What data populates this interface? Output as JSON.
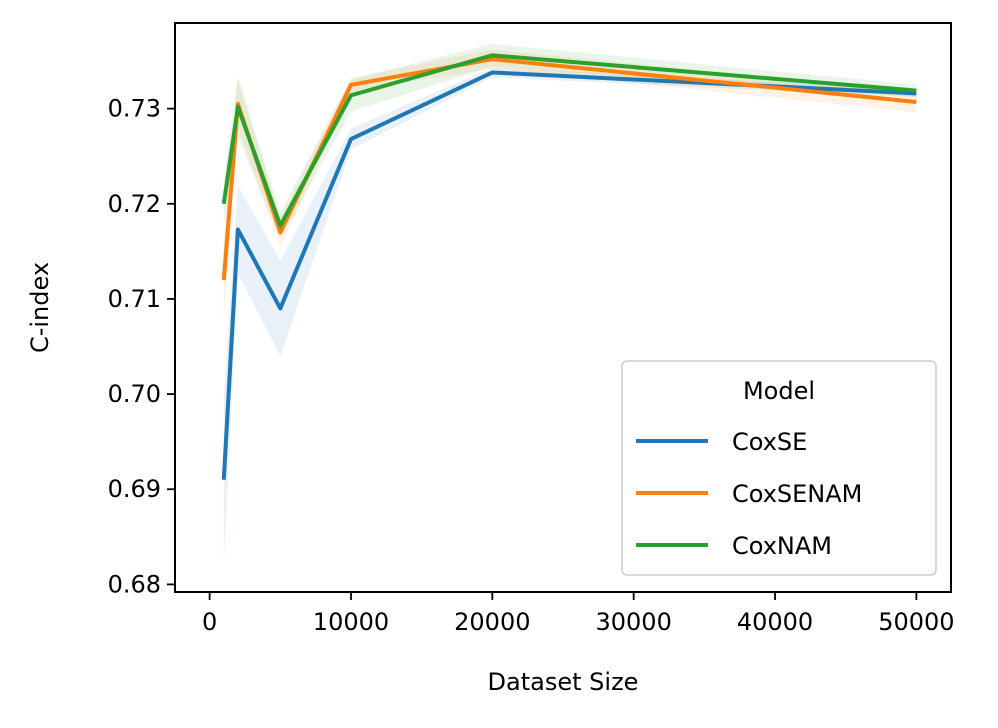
{
  "chart_data": {
    "type": "line",
    "title": "",
    "xlabel": "Dataset Size",
    "ylabel": "C-index",
    "xlim": [
      -2450,
      52450
    ],
    "ylim": [
      0.6792,
      0.739
    ],
    "xticks": [
      0,
      10000,
      20000,
      30000,
      40000,
      50000
    ],
    "xtick_labels": [
      "0",
      "10000",
      "20000",
      "30000",
      "40000",
      "50000"
    ],
    "yticks": [
      0.68,
      0.69,
      0.7,
      0.71,
      0.72,
      0.73
    ],
    "ytick_labels": [
      "0.68",
      "0.69",
      "0.70",
      "0.71",
      "0.72",
      "0.73"
    ],
    "grid": false,
    "legend": {
      "title": "Model",
      "placement": "lower-right"
    },
    "x": [
      1000,
      2000,
      5000,
      10000,
      20000,
      50000
    ],
    "series": [
      {
        "name": "CoxSE",
        "color": "#1f77b4",
        "values": [
          0.691,
          0.7173,
          0.709,
          0.7268,
          0.7338,
          0.7316
        ],
        "band_lower": [
          0.682,
          0.7127,
          0.704,
          0.7257,
          0.7333,
          0.7312
        ],
        "band_upper": [
          0.6997,
          0.7219,
          0.714,
          0.7279,
          0.7343,
          0.732
        ]
      },
      {
        "name": "CoxSENAM",
        "color": "#ff7f0e",
        "values": [
          0.712,
          0.7305,
          0.717,
          0.7325,
          0.7352,
          0.7307
        ],
        "band_lower": [
          0.7075,
          0.728,
          0.7155,
          0.7318,
          0.7342,
          0.7296
        ],
        "band_upper": [
          0.7165,
          0.733,
          0.7185,
          0.7332,
          0.7362,
          0.7318
        ]
      },
      {
        "name": "CoxNAM",
        "color": "#2ca02c",
        "values": [
          0.72,
          0.7302,
          0.7177,
          0.7314,
          0.7356,
          0.7319
        ],
        "band_lower": [
          0.7175,
          0.727,
          0.7163,
          0.7297,
          0.7344,
          0.7313
        ],
        "band_upper": [
          0.7225,
          0.7334,
          0.7191,
          0.7331,
          0.7368,
          0.7325
        ]
      }
    ]
  }
}
